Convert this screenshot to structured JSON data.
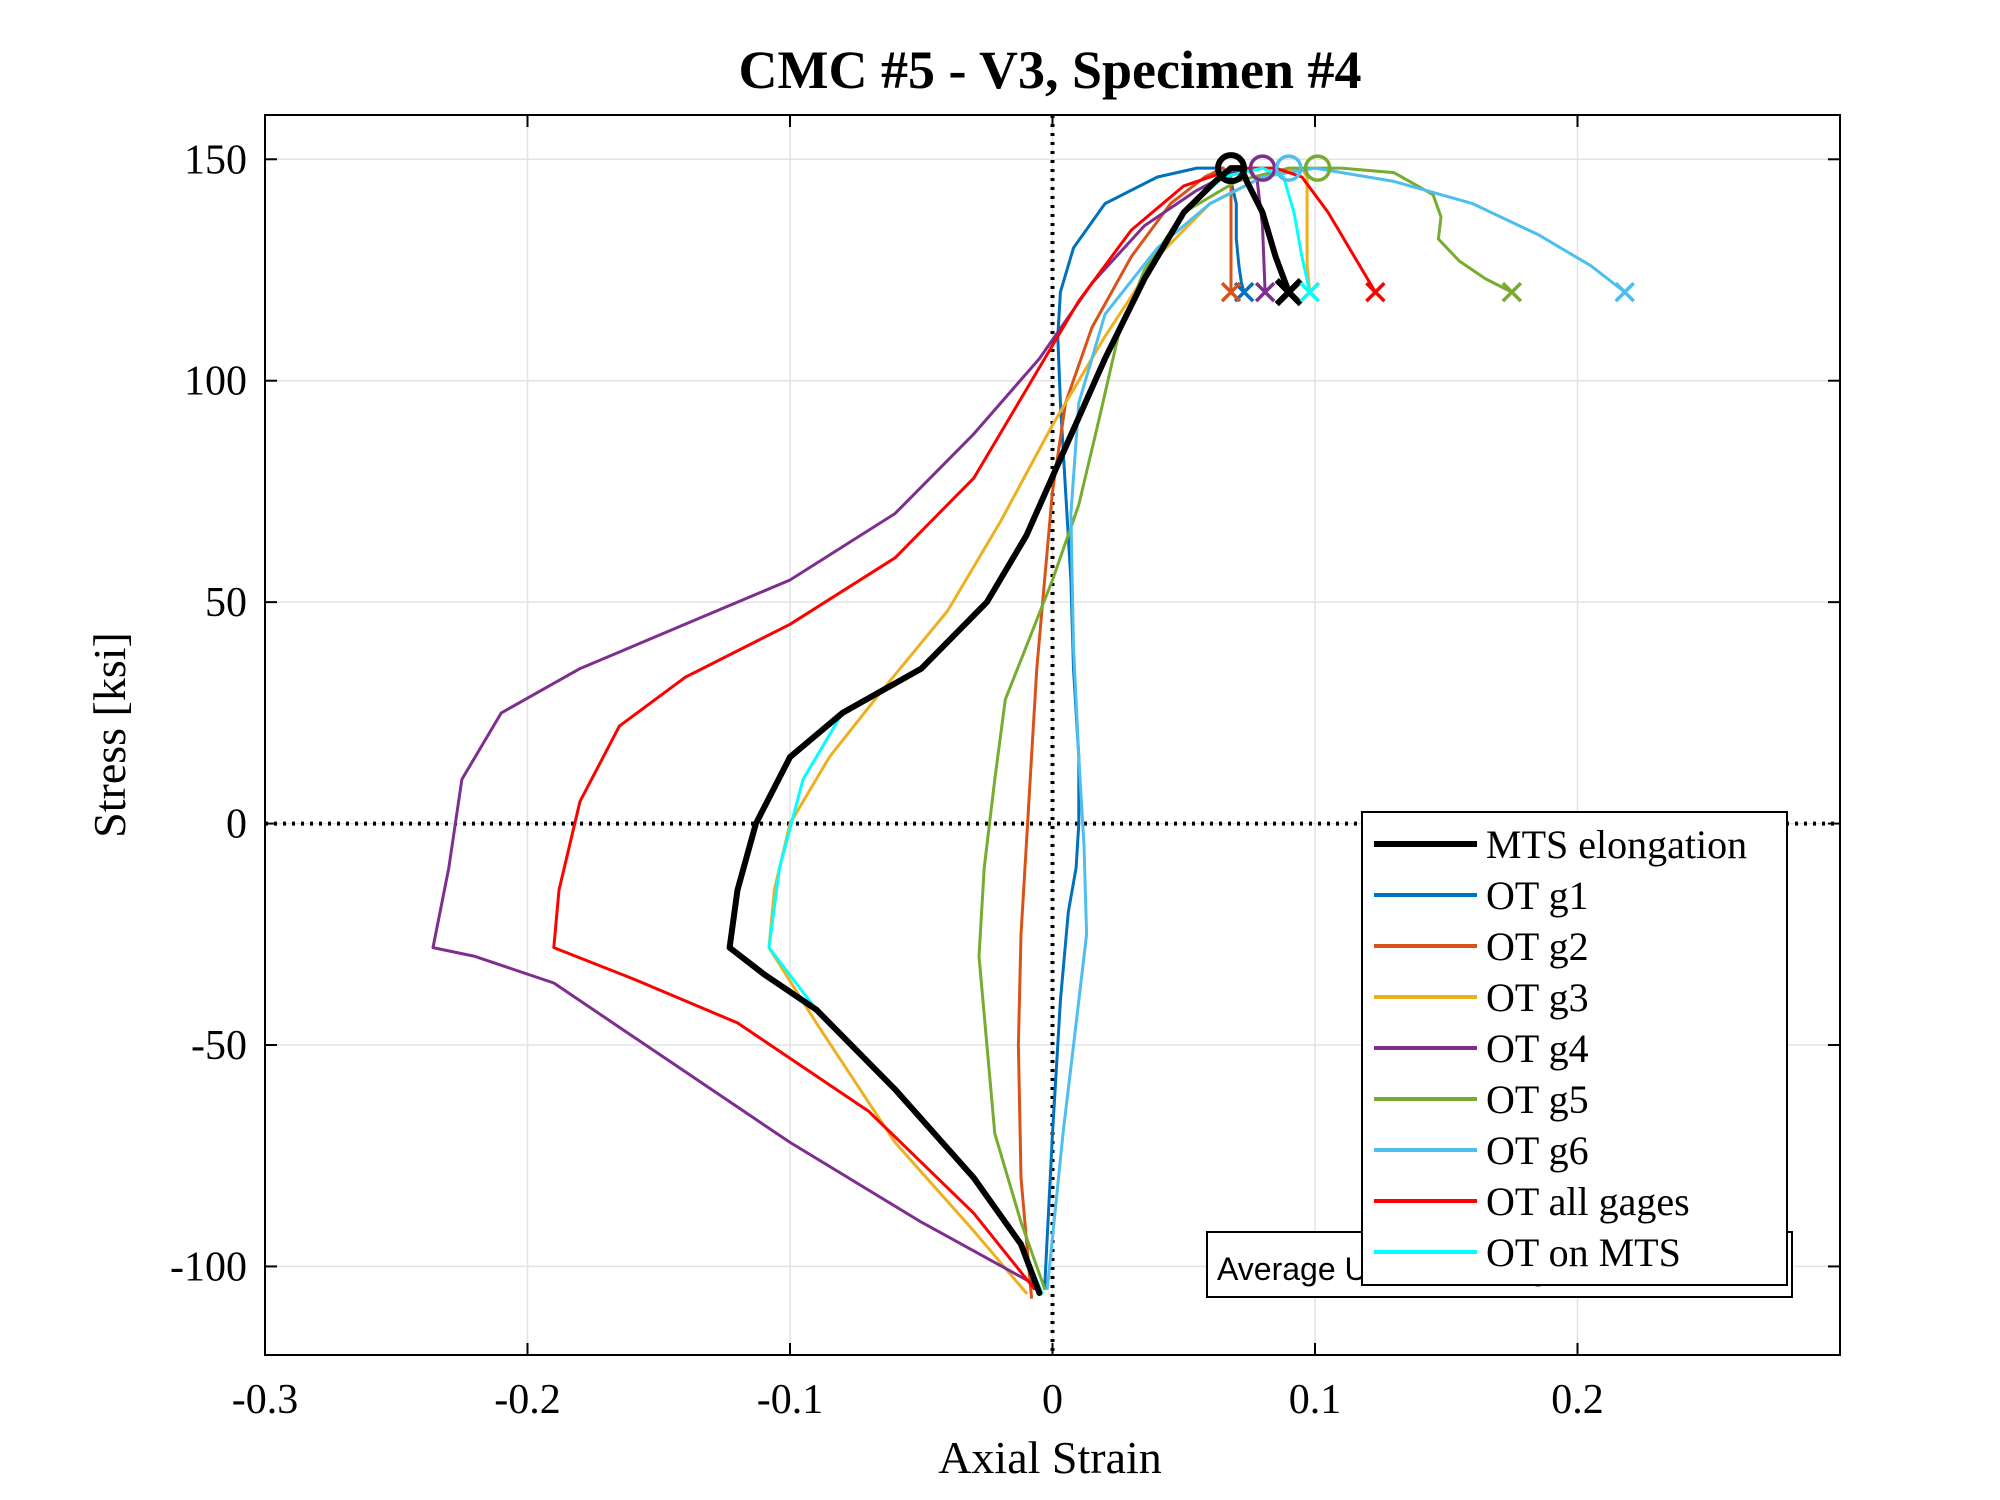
{
  "chart_data": {
    "type": "line",
    "title": "CMC #5 - V3, Specimen #4",
    "xlabel": "Axial Strain",
    "ylabel": "Stress [ksi]",
    "xlim": [
      -0.3,
      0.3
    ],
    "ylim": [
      -120,
      160
    ],
    "xticks": [
      -0.3,
      -0.2,
      -0.1,
      0,
      0.1,
      0.2
    ],
    "xtick_labels": [
      "-0.3",
      "-0.2",
      "-0.1",
      "0",
      "0.1",
      "0.2"
    ],
    "yticks": [
      -100,
      -50,
      0,
      50,
      100,
      150
    ],
    "ytick_labels": [
      "-100",
      "-50",
      "0",
      "50",
      "100",
      "150"
    ],
    "grid": true,
    "legend_position": "bottom-right",
    "annotation": "Average Uniform Elongation = 0.085",
    "series": [
      {
        "name": "MTS elongation",
        "color": "#000000",
        "width": 6,
        "x": [
          -0.005,
          -0.012,
          -0.03,
          -0.06,
          -0.09,
          -0.11,
          -0.123,
          -0.12,
          -0.113,
          -0.1,
          -0.08,
          -0.05,
          -0.025,
          -0.01,
          0.005,
          0.02,
          0.035,
          0.05,
          0.062,
          0.068,
          0.072,
          0.074,
          0.08,
          0.085,
          0.09
        ],
        "y": [
          -106,
          -95,
          -80,
          -60,
          -42,
          -34,
          -28,
          -15,
          0,
          15,
          25,
          35,
          50,
          65,
          85,
          105,
          123,
          138,
          145,
          148,
          148,
          145,
          138,
          128,
          120
        ],
        "max_marker": [
          0.068,
          148
        ],
        "fracture_marker": [
          0.09,
          120
        ]
      },
      {
        "name": "OT g1",
        "color": "#0072BD",
        "width": 3,
        "x": [
          -0.003,
          0.0,
          0.003,
          0.006,
          0.009,
          0.01,
          0.01,
          0.008,
          0.007,
          0.005,
          0.003,
          0.002,
          0.003,
          0.008,
          0.02,
          0.04,
          0.055,
          0.065,
          0.068,
          0.07,
          0.07,
          0.071,
          0.072,
          0.073
        ],
        "y": [
          -105,
          -70,
          -40,
          -20,
          -10,
          0,
          15,
          35,
          55,
          75,
          95,
          110,
          120,
          130,
          140,
          146,
          148,
          148,
          145,
          140,
          132,
          126,
          122,
          120
        ],
        "max_marker": null,
        "fracture_marker": [
          0.073,
          120
        ]
      },
      {
        "name": "OT g2",
        "color": "#D95319",
        "width": 3,
        "x": [
          -0.008,
          -0.012,
          -0.013,
          -0.012,
          -0.01,
          -0.008,
          -0.006,
          -0.003,
          0.0,
          0.005,
          0.015,
          0.03,
          0.045,
          0.058,
          0.065,
          0.068,
          0.068,
          0.068,
          0.068
        ],
        "y": [
          -107,
          -80,
          -50,
          -25,
          -5,
          15,
          35,
          55,
          75,
          95,
          112,
          128,
          140,
          146,
          148,
          146,
          140,
          128,
          120
        ],
        "max_marker": null,
        "fracture_marker": [
          0.068,
          120
        ]
      },
      {
        "name": "OT g3",
        "color": "#EDB120",
        "width": 3,
        "x": [
          -0.01,
          -0.03,
          -0.06,
          -0.09,
          -0.108,
          -0.106,
          -0.1,
          -0.085,
          -0.065,
          -0.04,
          -0.02,
          0.0,
          0.02,
          0.04,
          0.06,
          0.08,
          0.095,
          0.097,
          0.097,
          0.097,
          0.098
        ],
        "y": [
          -106,
          -92,
          -72,
          -45,
          -28,
          -15,
          0,
          15,
          30,
          48,
          68,
          90,
          110,
          128,
          140,
          146,
          148,
          146,
          138,
          126,
          120
        ],
        "max_marker": null,
        "fracture_marker": [
          0.098,
          120
        ]
      },
      {
        "name": "OT g4",
        "color": "#7E2F8E",
        "width": 3,
        "x": [
          -0.007,
          -0.05,
          -0.1,
          -0.15,
          -0.19,
          -0.22,
          -0.236,
          -0.23,
          -0.225,
          -0.21,
          -0.18,
          -0.14,
          -0.1,
          -0.06,
          -0.03,
          -0.005,
          0.015,
          0.035,
          0.055,
          0.068,
          0.075,
          0.078,
          0.08,
          0.081
        ],
        "y": [
          -104,
          -90,
          -72,
          -52,
          -36,
          -30,
          -28,
          -10,
          10,
          25,
          35,
          45,
          55,
          70,
          88,
          105,
          122,
          135,
          143,
          147,
          148,
          145,
          135,
          120
        ],
        "max_marker": [
          0.08,
          148
        ],
        "fracture_marker": [
          0.081,
          120
        ]
      },
      {
        "name": "OT g5",
        "color": "#77AC30",
        "width": 3,
        "x": [
          -0.003,
          -0.012,
          -0.022,
          -0.028,
          -0.026,
          -0.022,
          -0.018,
          -0.01,
          0.0,
          0.01,
          0.018,
          0.025,
          0.035,
          0.05,
          0.07,
          0.09,
          0.11,
          0.13,
          0.145,
          0.148,
          0.147,
          0.155,
          0.165,
          0.175
        ],
        "y": [
          -105,
          -90,
          -70,
          -30,
          -10,
          10,
          28,
          40,
          55,
          72,
          92,
          110,
          125,
          138,
          145,
          148,
          148,
          147,
          142,
          137,
          132,
          127,
          123,
          120
        ],
        "max_marker": [
          0.101,
          148
        ],
        "fracture_marker": [
          0.175,
          120
        ]
      },
      {
        "name": "OT g6",
        "color": "#4DBEEE",
        "width": 3,
        "x": [
          -0.002,
          0.004,
          0.01,
          0.013,
          0.012,
          0.01,
          0.008,
          0.007,
          0.01,
          0.02,
          0.04,
          0.06,
          0.08,
          0.1,
          0.13,
          0.16,
          0.185,
          0.205,
          0.218
        ],
        "y": [
          -105,
          -70,
          -40,
          -25,
          -5,
          15,
          40,
          70,
          95,
          115,
          130,
          140,
          146,
          148,
          145,
          140,
          133,
          126,
          120
        ],
        "max_marker": [
          0.09,
          148
        ],
        "fracture_marker": [
          0.218,
          120
        ]
      },
      {
        "name": "OT all gages",
        "color": "#FF0000",
        "width": 3,
        "x": [
          -0.007,
          -0.03,
          -0.07,
          -0.12,
          -0.16,
          -0.19,
          -0.188,
          -0.18,
          -0.165,
          -0.14,
          -0.1,
          -0.06,
          -0.03,
          -0.01,
          0.01,
          0.03,
          0.05,
          0.07,
          0.085,
          0.095,
          0.105,
          0.115,
          0.123
        ],
        "y": [
          -105,
          -88,
          -65,
          -45,
          -35,
          -28,
          -15,
          5,
          22,
          33,
          45,
          60,
          78,
          98,
          118,
          134,
          144,
          148,
          148,
          146,
          138,
          128,
          120
        ],
        "max_marker": null,
        "fracture_marker": [
          0.123,
          120
        ]
      },
      {
        "name": "OT on MTS",
        "color": "#00FFFF",
        "width": 3,
        "x": [
          -0.004,
          -0.012,
          -0.03,
          -0.06,
          -0.09,
          -0.108,
          -0.104,
          -0.095,
          -0.08,
          -0.05,
          -0.025,
          -0.01,
          0.005,
          0.02,
          0.035,
          0.05,
          0.065,
          0.08,
          0.088,
          0.092,
          0.095,
          0.098
        ],
        "y": [
          -106,
          -95,
          -80,
          -60,
          -42,
          -28,
          -10,
          10,
          25,
          35,
          50,
          65,
          85,
          105,
          123,
          138,
          146,
          148,
          146,
          138,
          128,
          120
        ],
        "max_marker": null,
        "fracture_marker": [
          0.098,
          120
        ]
      }
    ]
  }
}
